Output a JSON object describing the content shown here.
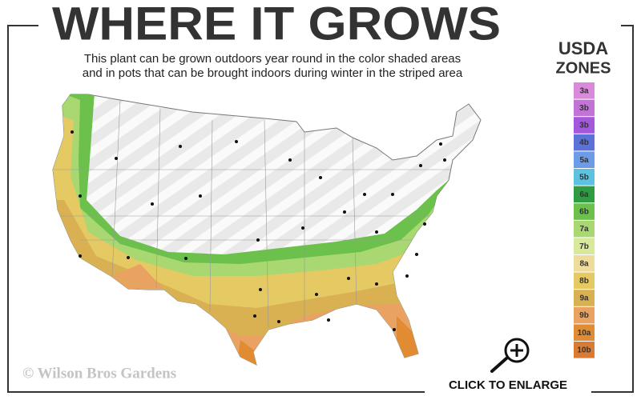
{
  "header": {
    "title": "WHERE IT GROWS",
    "subtitle": [
      "This plant can be grown outdoors year round in the color shaded areas",
      "and in pots that can be brought indoors during winter in the striped area"
    ]
  },
  "legend": {
    "title": [
      "USDA",
      "ZONES"
    ],
    "zones": [
      {
        "label": "3a",
        "color": "#d98ad9"
      },
      {
        "label": "3b",
        "color": "#c274d6"
      },
      {
        "label": "3b",
        "color": "#a459dd"
      },
      {
        "label": "4b",
        "color": "#5b72d9"
      },
      {
        "label": "5a",
        "color": "#6c9ce8"
      },
      {
        "label": "5b",
        "color": "#5cc2e0"
      },
      {
        "label": "6a",
        "color": "#2f9b42"
      },
      {
        "label": "6b",
        "color": "#6cc04c"
      },
      {
        "label": "7a",
        "color": "#a9d872"
      },
      {
        "label": "7b",
        "color": "#d9e99c"
      },
      {
        "label": "8a",
        "color": "#eddc9c"
      },
      {
        "label": "8b",
        "color": "#e5c962"
      },
      {
        "label": "9a",
        "color": "#d9b152"
      },
      {
        "label": "9b",
        "color": "#e9a262"
      },
      {
        "label": "10a",
        "color": "#e18b32"
      },
      {
        "label": "10b",
        "color": "#d97b32"
      }
    ]
  },
  "footer": {
    "copyright": "© Wilson Bros Gardens",
    "cta": "CLICK TO ENLARGE"
  }
}
